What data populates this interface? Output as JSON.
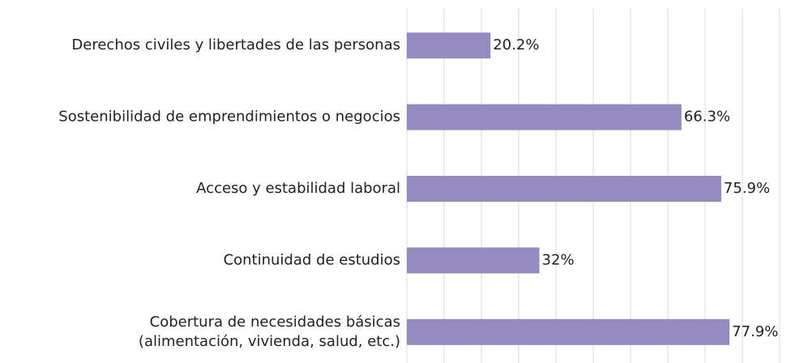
{
  "chart_data": {
    "type": "bar",
    "orientation": "horizontal",
    "categories": [
      "Derechos civiles y libertades de las personas",
      "Sostenibilidad de emprendimientos o negocios",
      "Acceso y estabilidad laboral",
      "Continuidad de estudios",
      "Cobertura de necesidades básicas\n(alimentación, vivienda, salud, etc.)"
    ],
    "values": [
      20.2,
      66.3,
      75.9,
      32,
      77.9
    ],
    "value_labels": [
      "20.2%",
      "66.3%",
      "75.9%",
      "32%",
      "77.9%"
    ],
    "color": "#968bc1",
    "xlim": [
      0,
      90
    ],
    "xticks": [
      0,
      9,
      18,
      27,
      36,
      45,
      54,
      63,
      72,
      81,
      90
    ],
    "grid": true
  }
}
